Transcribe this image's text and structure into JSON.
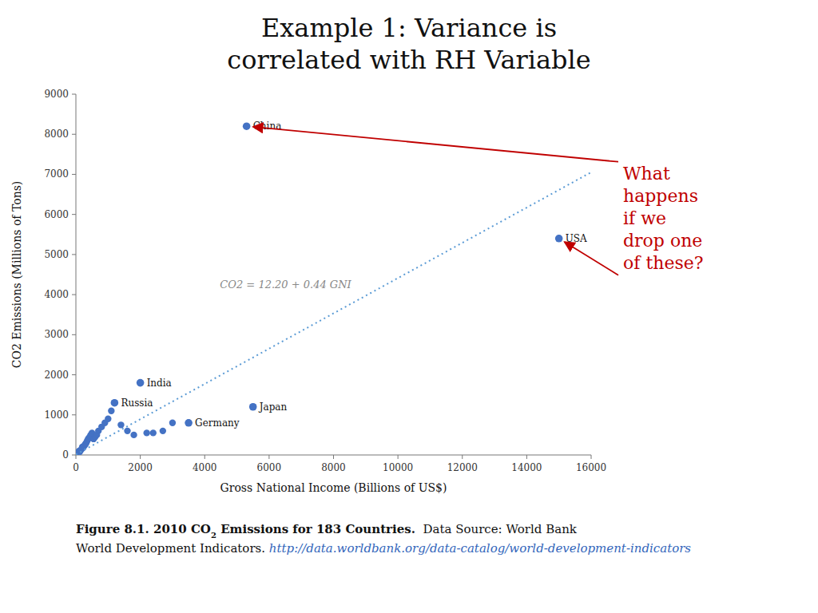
{
  "chart_data": {
    "type": "scatter",
    "title": "Example 1: Variance is\ncorrelated with RH Variable",
    "xlabel": "Gross National Income (Billions of US$)",
    "ylabel": "CO2 Emissions (Millions of Tons)",
    "xlim": [
      0,
      16000
    ],
    "ylim": [
      0,
      9000
    ],
    "xticks": [
      0,
      2000,
      4000,
      6000,
      8000,
      10000,
      12000,
      14000,
      16000
    ],
    "yticks": [
      0,
      1000,
      2000,
      3000,
      4000,
      5000,
      6000,
      7000,
      8000,
      9000
    ],
    "grid": false,
    "series": [
      {
        "type": "scatter",
        "color": "#4472C4",
        "x": [
          50,
          80,
          100,
          120,
          150,
          180,
          200,
          220,
          250,
          280,
          300,
          320,
          350,
          380,
          400,
          430,
          460,
          500,
          550,
          600,
          650,
          700,
          800,
          900,
          1000,
          1100,
          1200,
          1400,
          1600,
          1800,
          2000,
          2200,
          2400,
          2700,
          3000,
          3500,
          5500,
          15000
        ],
        "values": [
          50,
          70,
          100,
          80,
          120,
          150,
          200,
          180,
          220,
          250,
          280,
          300,
          350,
          400,
          420,
          450,
          500,
          550,
          400,
          450,
          500,
          600,
          700,
          800,
          900,
          1100,
          1300,
          750,
          600,
          500,
          1800,
          550,
          550,
          600,
          800,
          800,
          1200,
          5400
        ]
      },
      {
        "type": "scatter",
        "color": "#4472C4",
        "labels": [
          "China",
          "USA",
          "India",
          "Russia",
          "Japan",
          "Germany"
        ],
        "x": [
          5300,
          15000,
          2000,
          1200,
          5500,
          3500
        ],
        "values": [
          8200,
          5400,
          1800,
          1300,
          1200,
          800
        ]
      },
      {
        "type": "line",
        "color": "#5B9BD5",
        "line_style": "dotted",
        "label": "CO2 = 12.20 + 0.44 GNI",
        "x": [
          0,
          16000
        ],
        "values": [
          12.2,
          7052.2
        ]
      }
    ],
    "annotations": [
      {
        "text": "What\nhappens\nif we\ndrop one\nof these?",
        "color": "#C00000",
        "arrow_x": [
          5300,
          15000
        ],
        "arrow_y": [
          8200,
          5400
        ]
      }
    ],
    "caption": {
      "figure": "Figure 8.1. 2010 CO",
      "subscript": "2",
      "figure_rest": " Emissions for 183 Countries.",
      "source": "  Data Source: World Bank",
      "source_rest": "World Development Indicators. ",
      "url": "http://data.worldbank.org/data-catalog/world-development-indicators"
    }
  }
}
